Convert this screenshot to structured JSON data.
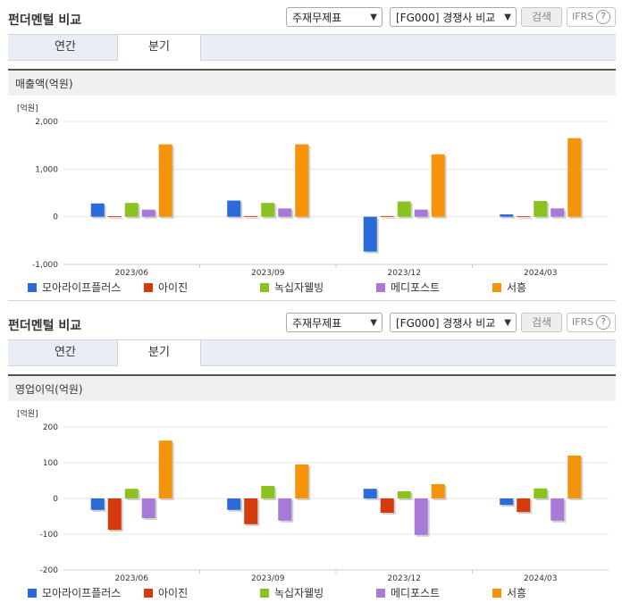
{
  "panels": [
    {
      "title": "펀더멘털 비교",
      "select1": "주재무제표",
      "select2": "[FG000] 경쟁사 비교",
      "search_label": "검색",
      "ifrs_label": "IFRS",
      "tabs": [
        "연간",
        "분기"
      ],
      "active_tab": 1,
      "section_label": "매출액(억원)"
    },
    {
      "title": "펀더멘털 비교",
      "select1": "주재무제표",
      "select2": "[FG000] 경쟁사 비교",
      "search_label": "검색",
      "ifrs_label": "IFRS",
      "tabs": [
        "연간",
        "분기"
      ],
      "active_tab": 1,
      "section_label": "영업이익(억원)"
    }
  ],
  "colors": {
    "series": [
      "#2a6ad9",
      "#d43a0b",
      "#8cc21f",
      "#a77ad8",
      "#f5930b"
    ],
    "grid": "#e6e6e6",
    "axis_text": "#333333"
  },
  "chart_data": [
    {
      "type": "bar",
      "unit_label": "[억원]",
      "categories": [
        "2023/06",
        "2023/09",
        "2023/12",
        "2024/03"
      ],
      "ylim": [
        -1000,
        2000
      ],
      "yticks": [
        "2,000",
        "1,000",
        "0",
        "-1,000"
      ],
      "ytick_values": [
        2000,
        1000,
        0,
        -1000
      ],
      "series": [
        {
          "name": "모아라이프플러스",
          "values": [
            280,
            340,
            -730,
            50
          ]
        },
        {
          "name": "아이진",
          "values": [
            10,
            15,
            15,
            10
          ]
        },
        {
          "name": "녹십자웰빙",
          "values": [
            290,
            290,
            320,
            330
          ]
        },
        {
          "name": "메디포스트",
          "values": [
            150,
            175,
            150,
            175
          ]
        },
        {
          "name": "서흥",
          "values": [
            1520,
            1520,
            1310,
            1650
          ]
        }
      ],
      "legend": "bottom"
    },
    {
      "type": "bar",
      "unit_label": "[억원]",
      "categories": [
        "2023/06",
        "2023/09",
        "2023/12",
        "2024/03"
      ],
      "ylim": [
        -200,
        200
      ],
      "yticks": [
        "200",
        "100",
        "0",
        "-100",
        "-200"
      ],
      "ytick_values": [
        200,
        100,
        0,
        -100,
        -200
      ],
      "series": [
        {
          "name": "모아라이프플러스",
          "values": [
            -32,
            -32,
            27,
            -18
          ]
        },
        {
          "name": "아이진",
          "values": [
            -88,
            -72,
            -40,
            -38
          ]
        },
        {
          "name": "녹십자웰빙",
          "values": [
            27,
            35,
            20,
            28
          ]
        },
        {
          "name": "메디포스트",
          "values": [
            -55,
            -62,
            -102,
            -62
          ]
        },
        {
          "name": "서흥",
          "values": [
            162,
            95,
            40,
            120
          ]
        }
      ],
      "legend": "bottom"
    }
  ]
}
